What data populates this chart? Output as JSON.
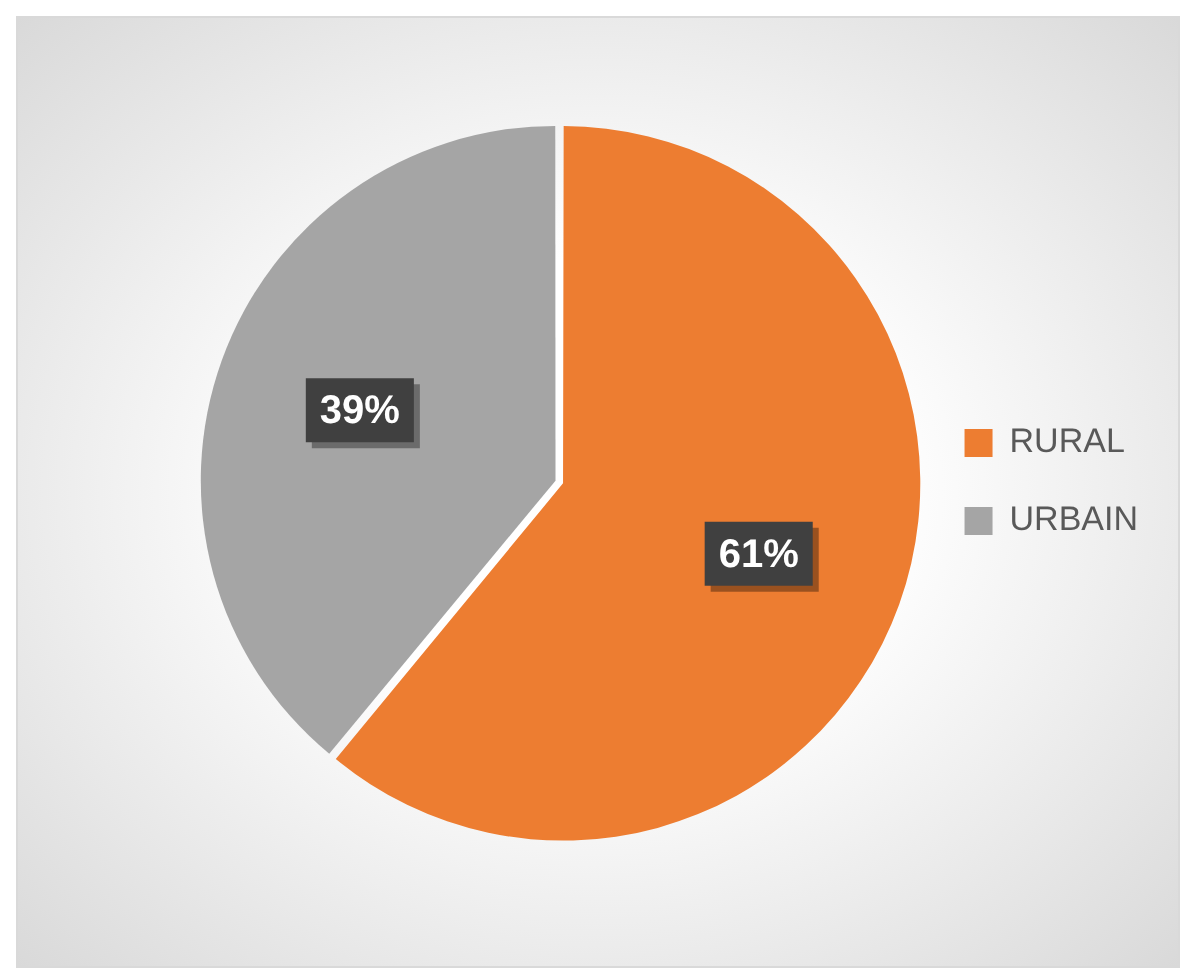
{
  "chart_data": {
    "type": "pie",
    "categories": [
      "RURAL",
      "URBAIN"
    ],
    "values": [
      61,
      39
    ],
    "colors": [
      "#ed7d31",
      "#a5a5a5"
    ],
    "value_labels": [
      "61%",
      "39%"
    ],
    "legend": "right"
  }
}
